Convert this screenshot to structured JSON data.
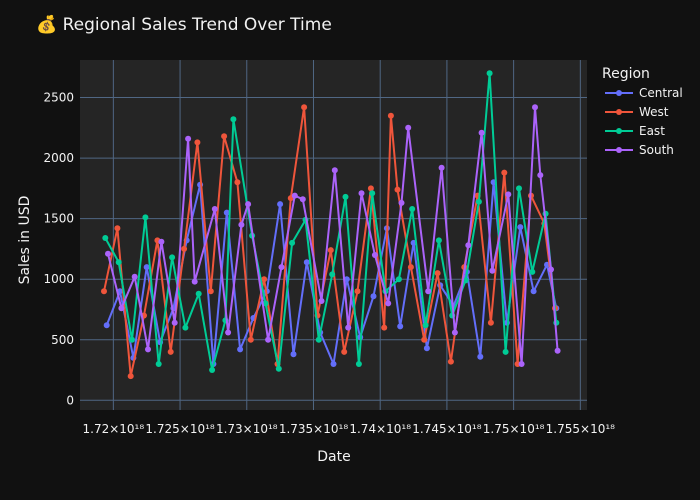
{
  "chart_data": {
    "type": "line",
    "title": "💰 Regional Sales Trend Over Time",
    "xlabel": "Date",
    "ylabel": "Sales in USD",
    "xlim": [
      1.7175e+18,
      1.7555e+18
    ],
    "ylim": [
      -80,
      2810
    ],
    "x_ticks": [
      1.72e+18,
      1.725e+18,
      1.73e+18,
      1.735e+18,
      1.74e+18,
      1.745e+18,
      1.75e+18,
      1.755e+18
    ],
    "x_tick_labels": [
      "1.72×10¹⁸",
      "1.725×10¹⁸",
      "1.73×10¹⁸",
      "1.735×10¹⁸",
      "1.74×10¹⁸",
      "1.745×10¹⁸",
      "1.75×10¹⁸",
      "1.755×10¹⁸"
    ],
    "y_ticks": [
      0,
      500,
      1000,
      1500,
      2000,
      2500
    ],
    "y_tick_labels": [
      "0",
      "500",
      "1000",
      "1500",
      "2000",
      "2500"
    ],
    "grid": true,
    "legend_title": "Region",
    "legend_position": "right",
    "series": [
      {
        "name": "Central",
        "color": "#636efa",
        "x": [
          1.7195e+18,
          1.7205e+18,
          1.7215e+18,
          1.7225e+18,
          1.7235e+18,
          1.7245e+18,
          1.7255e+18,
          1.7265e+18,
          1.7275e+18,
          1.7285e+18,
          1.7295e+18,
          1.7305e+18,
          1.7315e+18,
          1.7325e+18,
          1.7335e+18,
          1.7345e+18,
          1.7355e+18,
          1.7365e+18,
          1.7375e+18,
          1.7385e+18,
          1.7395e+18,
          1.7405e+18,
          1.7415e+18,
          1.7425e+18,
          1.7435e+18,
          1.7445e+18,
          1.7455e+18,
          1.7465e+18,
          1.7475e+18,
          1.7485e+18,
          1.7495e+18,
          1.7505e+18,
          1.7515e+18,
          1.7525e+18,
          1.7532e+18
        ],
        "values": [
          620,
          900,
          350,
          1100,
          480,
          760,
          1320,
          1780,
          300,
          1550,
          420,
          680,
          900,
          1620,
          380,
          1140,
          560,
          300,
          1000,
          520,
          860,
          1420,
          610,
          1300,
          430,
          950,
          780,
          1060,
          360,
          1800,
          640,
          1430,
          900,
          1120,
          760
        ]
      },
      {
        "name": "West",
        "color": "#ef553b",
        "x": [
          1.7193e+18,
          1.7203e+18,
          1.7213e+18,
          1.7223e+18,
          1.7233e+18,
          1.7243e+18,
          1.7253e+18,
          1.7263e+18,
          1.7273e+18,
          1.7283e+18,
          1.7293e+18,
          1.7303e+18,
          1.7313e+18,
          1.7323e+18,
          1.7333e+18,
          1.7343e+18,
          1.7353e+18,
          1.7363e+18,
          1.7373e+18,
          1.7383e+18,
          1.7393e+18,
          1.7403e+18,
          1.7408e+18,
          1.7413e+18,
          1.7423e+18,
          1.7433e+18,
          1.7443e+18,
          1.7453e+18,
          1.7463e+18,
          1.7473e+18,
          1.7483e+18,
          1.7493e+18,
          1.7503e+18,
          1.7513e+18,
          1.7523e+18,
          1.7531e+18
        ],
        "values": [
          900,
          1420,
          200,
          700,
          1320,
          400,
          1250,
          2130,
          900,
          2180,
          1800,
          500,
          1000,
          300,
          1670,
          2420,
          700,
          1240,
          400,
          900,
          1750,
          600,
          2350,
          1740,
          1100,
          500,
          1050,
          320,
          1100,
          1690,
          640,
          1880,
          300,
          1690,
          1460,
          760
        ]
      },
      {
        "name": "East",
        "color": "#00cc96",
        "x": [
          1.7194e+18,
          1.7204e+18,
          1.7214e+18,
          1.7224e+18,
          1.7234e+18,
          1.7244e+18,
          1.7254e+18,
          1.7264e+18,
          1.7274e+18,
          1.7284e+18,
          1.729e+18,
          1.7304e+18,
          1.7314e+18,
          1.7324e+18,
          1.7334e+18,
          1.7344e+18,
          1.7354e+18,
          1.7364e+18,
          1.7374e+18,
          1.7384e+18,
          1.7394e+18,
          1.7404e+18,
          1.7414e+18,
          1.7424e+18,
          1.7434e+18,
          1.7444e+18,
          1.7454e+18,
          1.7464e+18,
          1.7474e+18,
          1.7482e+18,
          1.7494e+18,
          1.7504e+18,
          1.7514e+18,
          1.7524e+18,
          1.7532e+18
        ],
        "values": [
          1340,
          1140,
          500,
          1510,
          300,
          1180,
          600,
          880,
          250,
          660,
          2320,
          1360,
          800,
          260,
          1300,
          1490,
          500,
          1040,
          1680,
          300,
          1710,
          900,
          1000,
          1580,
          620,
          1320,
          700,
          990,
          1640,
          2700,
          400,
          1750,
          1060,
          1540,
          640
        ]
      },
      {
        "name": "South",
        "color": "#ab63fa",
        "x": [
          1.7196e+18,
          1.7206e+18,
          1.7216e+18,
          1.7226e+18,
          1.7236e+18,
          1.7246e+18,
          1.7256e+18,
          1.7261e+18,
          1.7276e+18,
          1.7286e+18,
          1.7296e+18,
          1.7301e+18,
          1.7316e+18,
          1.7326e+18,
          1.7336e+18,
          1.7342e+18,
          1.7356e+18,
          1.7366e+18,
          1.7376e+18,
          1.7386e+18,
          1.7396e+18,
          1.7406e+18,
          1.7416e+18,
          1.7421e+18,
          1.7436e+18,
          1.7446e+18,
          1.7456e+18,
          1.7466e+18,
          1.7476e+18,
          1.7484e+18,
          1.7496e+18,
          1.7506e+18,
          1.7516e+18,
          1.752e+18,
          1.7528e+18,
          1.7533e+18
        ],
        "values": [
          1210,
          760,
          1020,
          420,
          1310,
          640,
          2160,
          980,
          1580,
          560,
          1450,
          1620,
          500,
          1100,
          1690,
          1660,
          820,
          1900,
          600,
          1710,
          1200,
          800,
          1630,
          2250,
          900,
          1920,
          560,
          1280,
          2210,
          1070,
          1700,
          300,
          2420,
          1860,
          1080,
          410
        ]
      }
    ]
  }
}
